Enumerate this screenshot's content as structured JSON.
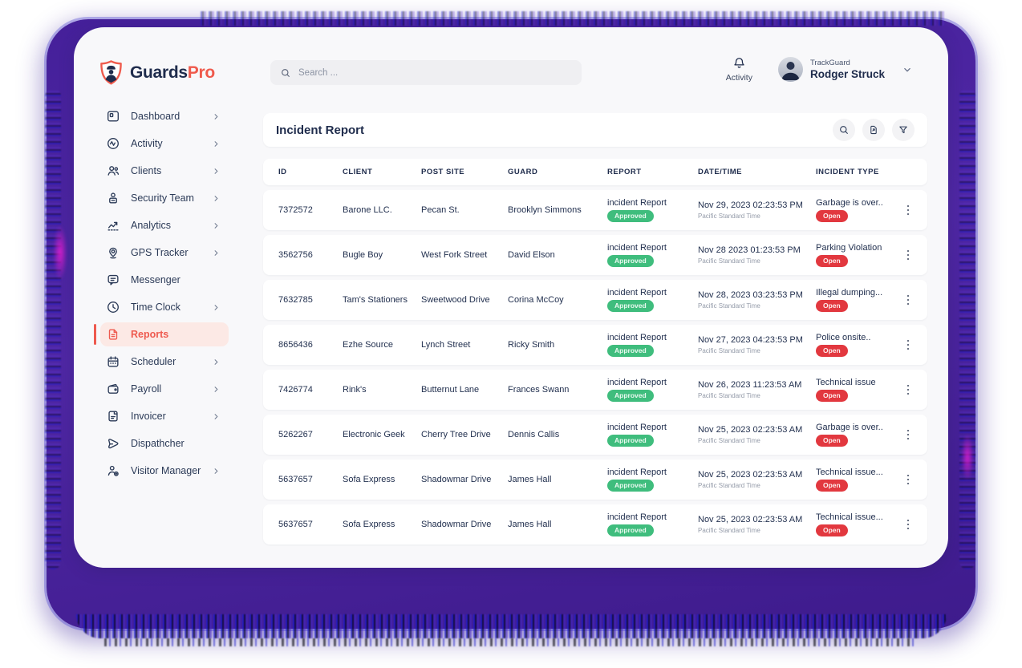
{
  "brand": {
    "name": "GuardsPro",
    "primary": "Guards",
    "secondary": "Pro"
  },
  "topbar": {
    "search_placeholder": "Search ...",
    "activity_label": "Activity",
    "user_company": "TrackGuard",
    "user_name": "Rodger Struck"
  },
  "sidebar": {
    "items": [
      {
        "label": "Dashboard",
        "icon": "dashboard-icon",
        "chevron": true,
        "active": false
      },
      {
        "label": "Activity",
        "icon": "activity-icon",
        "chevron": true,
        "active": false
      },
      {
        "label": "Clients",
        "icon": "clients-icon",
        "chevron": true,
        "active": false
      },
      {
        "label": "Security Team",
        "icon": "security-team-icon",
        "chevron": true,
        "active": false
      },
      {
        "label": "Analytics",
        "icon": "analytics-icon",
        "chevron": true,
        "active": false
      },
      {
        "label": "GPS Tracker",
        "icon": "gps-tracker-icon",
        "chevron": true,
        "active": false
      },
      {
        "label": "Messenger",
        "icon": "messenger-icon",
        "chevron": false,
        "active": false
      },
      {
        "label": "Time Clock",
        "icon": "time-clock-icon",
        "chevron": true,
        "active": false
      },
      {
        "label": "Reports",
        "icon": "reports-icon",
        "chevron": false,
        "active": true
      },
      {
        "label": "Scheduler",
        "icon": "scheduler-icon",
        "chevron": true,
        "active": false
      },
      {
        "label": "Payroll",
        "icon": "payroll-icon",
        "chevron": true,
        "active": false
      },
      {
        "label": "Invoicer",
        "icon": "invoicer-icon",
        "chevron": true,
        "active": false
      },
      {
        "label": "Dispathcher",
        "icon": "dispatcher-icon",
        "chevron": false,
        "active": false
      },
      {
        "label": "Visitor Manager",
        "icon": "visitor-manager-icon",
        "chevron": true,
        "active": false
      }
    ]
  },
  "report": {
    "title": "Incident Report",
    "toolbar_icons": [
      "search-icon",
      "export-icon",
      "filter-icon"
    ],
    "columns": [
      "ID",
      "CLIENT",
      "POST SITE",
      "GUARD",
      "REPORT",
      "DATE/TIME",
      "INCIDENT TYPE"
    ],
    "rows": [
      {
        "id": "7372572",
        "client": "Barone LLC.",
        "post_site": "Pecan St.",
        "guard": "Brooklyn Simmons",
        "report_label": "incident Report",
        "report_status": "Approved",
        "date": "Nov 29, 2023 02:23:53 PM",
        "timezone": "Pacific Standard Time",
        "incident": "Garbage is over..",
        "incident_status": "Open"
      },
      {
        "id": "3562756",
        "client": "Bugle Boy",
        "post_site": "West Fork Street",
        "guard": "David Elson",
        "report_label": "incident Report",
        "report_status": "Approved",
        "date": "Nov 28 2023 01:23:53 PM",
        "timezone": "Pacific Standard Time",
        "incident": "Parking Violation",
        "incident_status": "Open"
      },
      {
        "id": "7632785",
        "client": "Tam's Stationers",
        "post_site": "Sweetwood Drive",
        "guard": "Corina McCoy",
        "report_label": "incident Report",
        "report_status": "Approved",
        "date": "Nov 28, 2023 03:23:53 PM",
        "timezone": "Pacific Standard Time",
        "incident": "Illegal dumping...",
        "incident_status": "Open"
      },
      {
        "id": "8656436",
        "client": "Ezhe Source",
        "post_site": "Lynch Street",
        "guard": "Ricky Smith",
        "report_label": "incident Report",
        "report_status": "Approved",
        "date": "Nov 27, 2023 04:23:53 PM",
        "timezone": "Pacific Standard Time",
        "incident": "Police onsite..",
        "incident_status": "Open"
      },
      {
        "id": "7426774",
        "client": "Rink's",
        "post_site": "Butternut Lane",
        "guard": "Frances Swann",
        "report_label": "incident Report",
        "report_status": "Approved",
        "date": "Nov 26, 2023 11:23:53 AM",
        "timezone": "Pacific Standard Time",
        "incident": "Technical issue",
        "incident_status": "Open"
      },
      {
        "id": "5262267",
        "client": "Electronic Geek",
        "post_site": "Cherry Tree Drive",
        "guard": "Dennis Callis",
        "report_label": "incident Report",
        "report_status": "Approved",
        "date": "Nov 25, 2023 02:23:53 AM",
        "timezone": "Pacific Standard Time",
        "incident": "Garbage is over..",
        "incident_status": "Open"
      },
      {
        "id": "5637657",
        "client": "Sofa Express",
        "post_site": "Shadowmar Drive",
        "guard": "James Hall",
        "report_label": "incident Report",
        "report_status": "Approved",
        "date": "Nov 25, 2023 02:23:53 AM",
        "timezone": "Pacific Standard Time",
        "incident": "Technical issue...",
        "incident_status": "Open"
      },
      {
        "id": "5637657",
        "client": "Sofa Express",
        "post_site": "Shadowmar Drive",
        "guard": "James Hall",
        "report_label": "incident Report",
        "report_status": "Approved",
        "date": "Nov 25, 2023 02:23:53 AM",
        "timezone": "Pacific Standard Time",
        "incident": "Technical issue...",
        "incident_status": "Open"
      }
    ]
  },
  "colors": {
    "accent_red": "#EF5A4C",
    "navy": "#1F2C4C",
    "badge_green": "#3FBD7D",
    "badge_red": "#E2383F",
    "backdrop_purple": "#4A1D9E"
  }
}
